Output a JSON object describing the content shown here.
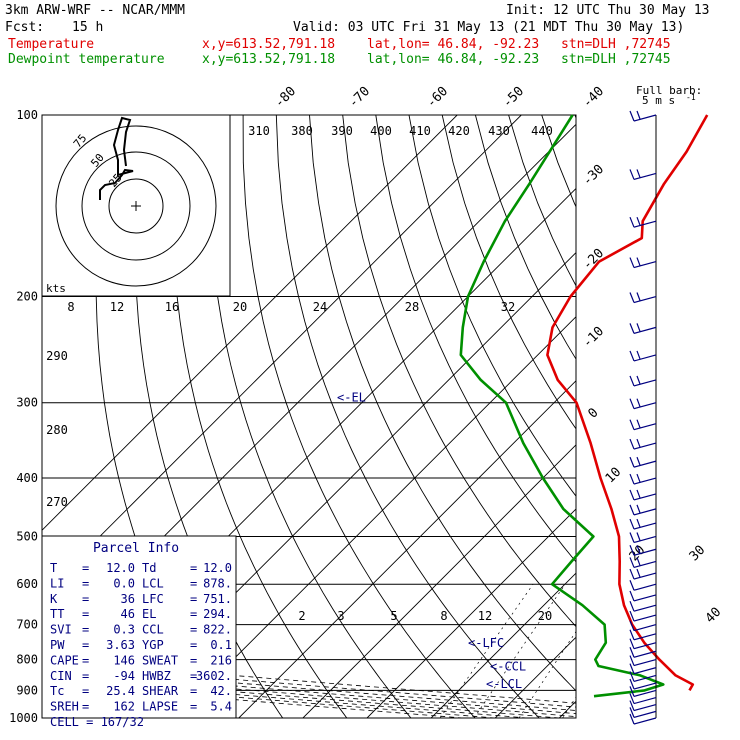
{
  "header": {
    "model": "3km ARW-WRF -- NCAR/MMM",
    "init": "Init: 12 UTC Thu 30 May 13",
    "fcst_label": "Fcst:",
    "fcst_value": "15 h",
    "valid": "Valid: 03 UTC Fri 31 May 13 (21 MDT Thu 30 May 13)",
    "temp_label": "Temperature",
    "dew_label": "Dewpoint temperature",
    "xy": "x,y=613.52,791.18",
    "latlon": "lat,lon= 46.84, -92.23",
    "stn": "stn=DLH ,72745"
  },
  "colors": {
    "temperature": "#e00000",
    "dewpoint": "#009000",
    "wind": "#000080",
    "grid": "#000000"
  },
  "chart_data": {
    "type": "line",
    "title": "",
    "y_axis": {
      "label": "",
      "scale": "log",
      "range": [
        1000,
        100
      ],
      "ticks": [
        100,
        200,
        300,
        400,
        500,
        600,
        700,
        800,
        900,
        1000
      ]
    },
    "isotherm_labels": [
      "-80",
      "-70",
      "-60",
      "-50",
      "-40",
      "-30",
      "-20",
      "-10",
      "0",
      "10",
      "20",
      "30",
      "40"
    ],
    "dry_adiabat_labels": [
      "290",
      "280",
      "270"
    ],
    "theta_e_labels": [
      "310",
      "380",
      "390",
      "400",
      "410",
      "420",
      "430",
      "440"
    ],
    "mixing_ratio_labels": [
      "2",
      "3",
      "5",
      "8",
      "12",
      "20"
    ],
    "series": [
      {
        "name": "Temperature",
        "color": "#e00000",
        "points": [
          [
            900,
            26.0
          ],
          [
            880,
            25.6
          ],
          [
            850,
            21.5
          ],
          [
            800,
            16.5
          ],
          [
            750,
            11.5
          ],
          [
            700,
            6.8
          ],
          [
            650,
            2.5
          ],
          [
            600,
            -1.5
          ],
          [
            550,
            -5.0
          ],
          [
            500,
            -9.0
          ],
          [
            450,
            -14.5
          ],
          [
            400,
            -21.0
          ],
          [
            350,
            -28.0
          ],
          [
            300,
            -36.5
          ],
          [
            275,
            -43.0
          ],
          [
            250,
            -48.5
          ],
          [
            225,
            -52.0
          ],
          [
            200,
            -54.0
          ],
          [
            175,
            -55.0
          ],
          [
            160,
            -52.0
          ],
          [
            150,
            -54.5
          ],
          [
            130,
            -57.0
          ],
          [
            115,
            -58.5
          ],
          [
            100,
            -61.0
          ]
        ]
      },
      {
        "name": "Dewpoint temperature",
        "color": "#009000",
        "points": [
          [
            920,
            12.0
          ],
          [
            900,
            19.0
          ],
          [
            880,
            21.0
          ],
          [
            850,
            16.0
          ],
          [
            820,
            8.0
          ],
          [
            800,
            6.5
          ],
          [
            750,
            5.5
          ],
          [
            700,
            2.5
          ],
          [
            650,
            -4.0
          ],
          [
            600,
            -12.0
          ],
          [
            550,
            -12.5
          ],
          [
            500,
            -13.0
          ],
          [
            450,
            -22.0
          ],
          [
            400,
            -30.0
          ],
          [
            350,
            -38.5
          ],
          [
            300,
            -47.5
          ],
          [
            275,
            -55.0
          ],
          [
            250,
            -62.0
          ],
          [
            225,
            -66.0
          ],
          [
            200,
            -70.0
          ],
          [
            175,
            -73.0
          ],
          [
            150,
            -76.0
          ],
          [
            130,
            -78.0
          ],
          [
            100,
            -82.0
          ]
        ]
      }
    ],
    "levels": [
      {
        "label": "<-EL",
        "p": 294
      },
      {
        "label": "<-LFC",
        "p": 751
      },
      {
        "label": "<-CCL",
        "p": 822
      },
      {
        "label": "<-LCL",
        "p": 878
      }
    ]
  },
  "hodograph": {
    "ring_labels": [
      "75",
      "50",
      "25"
    ],
    "units": "kts",
    "speed_labels": [
      "8",
      "12",
      "16",
      "20",
      "24",
      "28",
      "32"
    ]
  },
  "parcel_info": {
    "title": "Parcel Info",
    "rows": [
      {
        "k1": "T",
        "v1": "12.0",
        "k2": "Td",
        "v2": "12.0"
      },
      {
        "k1": "LI",
        "v1": "0.0",
        "k2": "LCL",
        "v2": "878."
      },
      {
        "k1": "K",
        "v1": "36",
        "k2": "LFC",
        "v2": "751."
      },
      {
        "k1": "TT",
        "v1": "46",
        "k2": "EL",
        "v2": "294."
      },
      {
        "k1": "SVI",
        "v1": "0.3",
        "k2": "CCL",
        "v2": "822."
      },
      {
        "k1": "PW",
        "v1": "3.63",
        "k2": "YGP",
        "v2": "0.1"
      },
      {
        "k1": "CAPE",
        "v1": "146",
        "k2": "SWEAT",
        "v2": "216"
      },
      {
        "k1": "CIN",
        "v1": "-94",
        "k2": "HWBZ",
        "v2": "3602."
      },
      {
        "k1": "Tc",
        "v1": "25.4",
        "k2": "SHEAR",
        "v2": "42."
      },
      {
        "k1": "SREH",
        "v1": "162",
        "k2": "LAPSE",
        "v2": "5.4"
      }
    ],
    "cell": "CELL = 167/32"
  },
  "barb_legend": {
    "title": "Full barb:",
    "value": "5 m s",
    "exp": "-1"
  }
}
